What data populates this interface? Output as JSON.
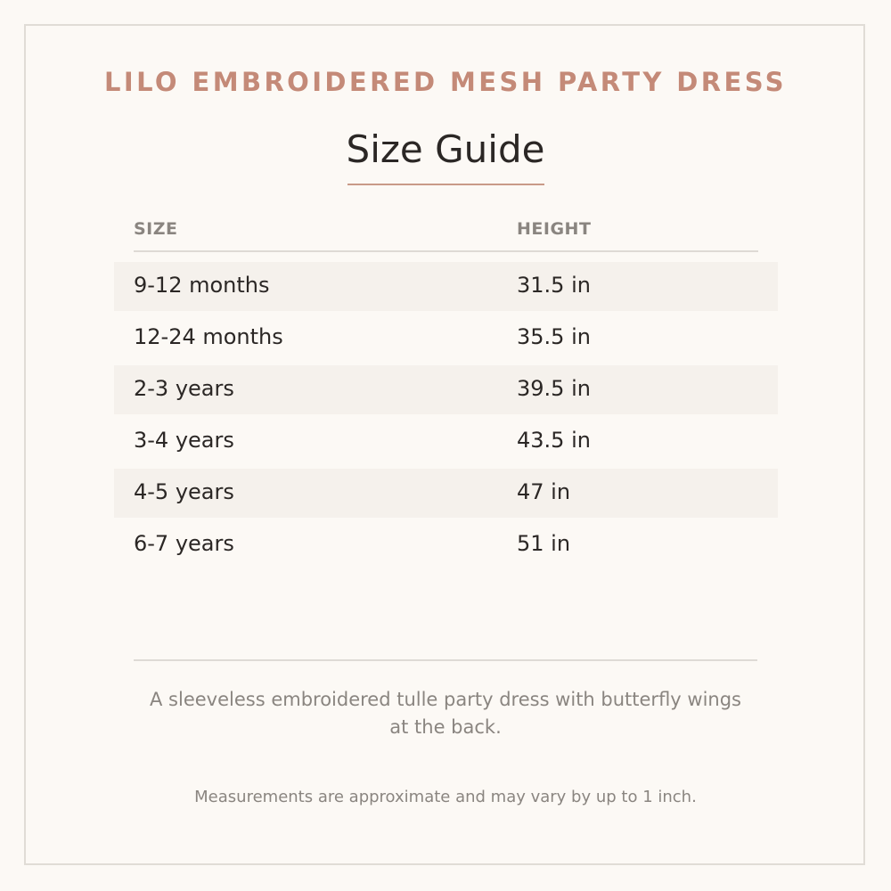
{
  "product_name": "LILO EMBROIDERED MESH PARTY DRESS",
  "title": "Size Guide",
  "table": {
    "headers": {
      "size": "SIZE",
      "height": "HEIGHT"
    },
    "rows": [
      {
        "size": "9-12 months",
        "height": "31.5 in"
      },
      {
        "size": "12-24 months",
        "height": "35.5 in"
      },
      {
        "size": "2-3 years",
        "height": "39.5 in"
      },
      {
        "size": "3-4 years",
        "height": "43.5 in"
      },
      {
        "size": "4-5 years",
        "height": "47 in"
      },
      {
        "size": "6-7 years",
        "height": "51 in"
      }
    ]
  },
  "description": "A sleeveless embroidered tulle party dress with butterfly wings at the back.",
  "note": "Measurements are approximate and may vary by up to 1 inch.",
  "colors": {
    "accent": "#c48a78",
    "text": "#2b2725",
    "muted": "#8a8580",
    "background": "#fcf9f5",
    "row_shade": "#f5f1ec"
  }
}
